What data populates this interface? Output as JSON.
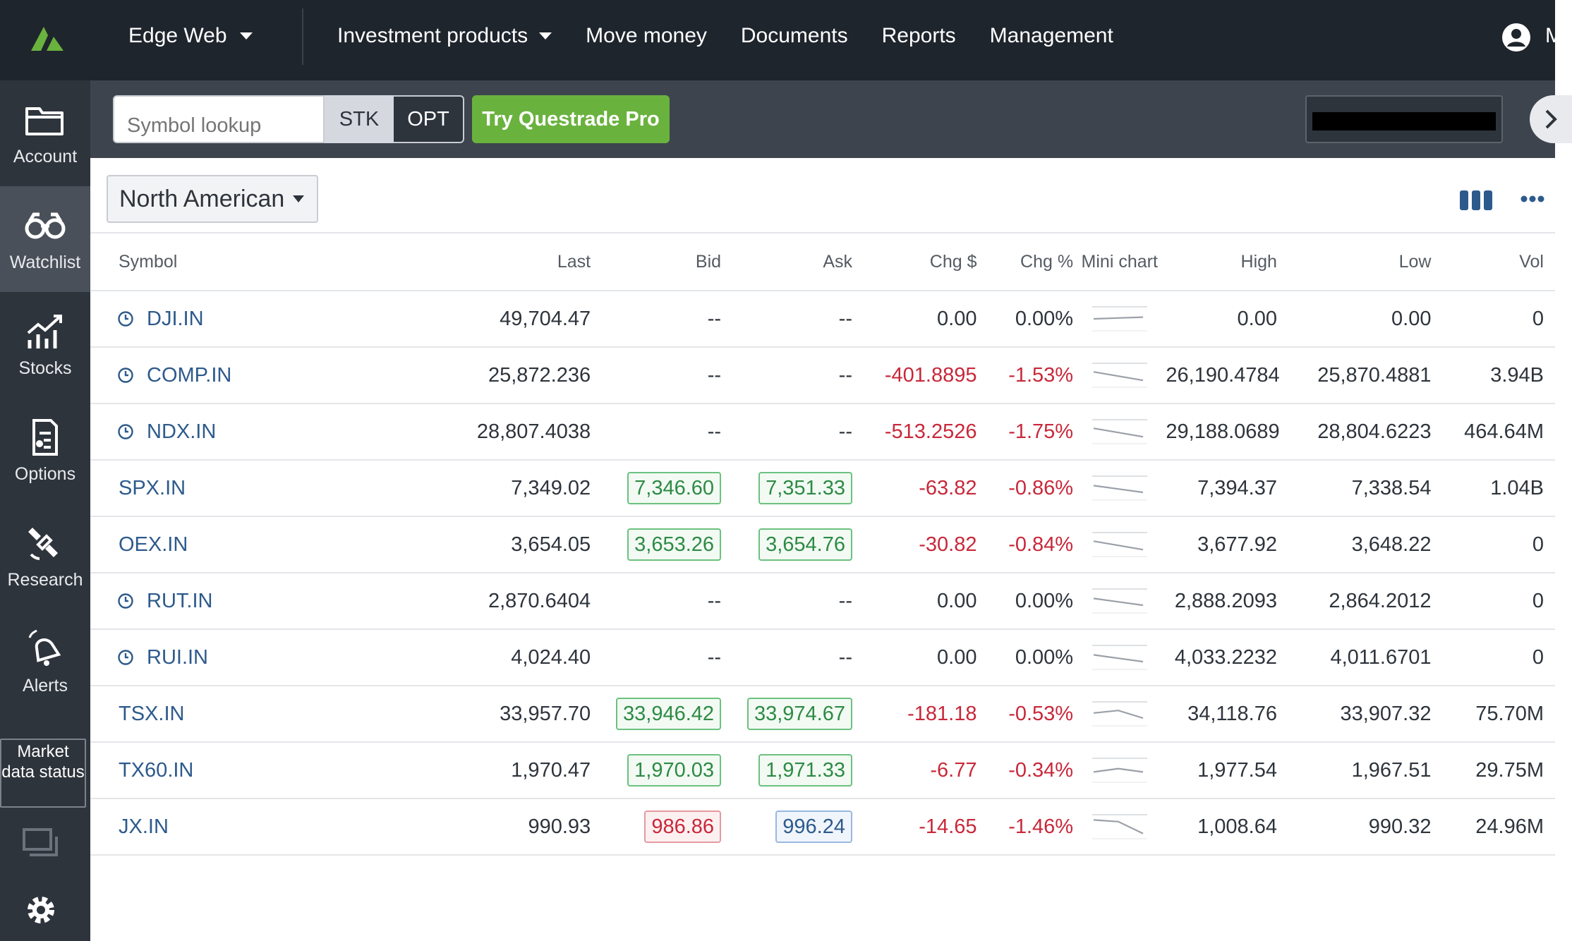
{
  "topbar": {
    "app_name": "Edge Web",
    "nav": [
      "Investment products",
      "Move money",
      "Documents",
      "Reports",
      "Management"
    ],
    "user_initial": "M"
  },
  "sidebar": {
    "items": [
      {
        "label": "Account",
        "icon": "folder-icon"
      },
      {
        "label": "Watchlist",
        "icon": "binoculars-icon",
        "active": true
      },
      {
        "label": "Stocks",
        "icon": "stocks-chart-icon"
      },
      {
        "label": "Options",
        "icon": "options-doc-icon"
      },
      {
        "label": "Research",
        "icon": "satellite-icon"
      },
      {
        "label": "Alerts",
        "icon": "bell-icon"
      }
    ],
    "market_status": "Market data status"
  },
  "toolbar": {
    "search_placeholder": "Symbol lookup",
    "stk": "STK",
    "opt": "OPT",
    "pro_button": "Try Questrade Pro"
  },
  "watchlist": {
    "region": "North American",
    "columns": [
      "Symbol",
      "Last",
      "Bid",
      "Ask",
      "Chg $",
      "Chg %",
      "Mini chart",
      "High",
      "Low",
      "Vol"
    ],
    "rows": [
      {
        "symbol": "DJI.IN",
        "clock": true,
        "last": "49,704.47",
        "bid": "--",
        "ask": "--",
        "chg": "0.00",
        "chgp": "0.00%",
        "neg": false,
        "spark": [
          0.5,
          0.45,
          0.4
        ],
        "high": "0.00",
        "low": "0.00",
        "vol": "0"
      },
      {
        "symbol": "COMP.IN",
        "clock": true,
        "last": "25,872.236",
        "bid": "--",
        "ask": "--",
        "chg": "-401.8895",
        "chgp": "-1.53%",
        "neg": true,
        "spark": [
          0.3,
          0.55,
          0.8
        ],
        "high": "26,190.4784",
        "low": "25,870.4881",
        "vol": "3.94B"
      },
      {
        "symbol": "NDX.IN",
        "clock": true,
        "last": "28,807.4038",
        "bid": "--",
        "ask": "--",
        "chg": "-513.2526",
        "chgp": "-1.75%",
        "neg": true,
        "spark": [
          0.3,
          0.55,
          0.8
        ],
        "high": "29,188.0689",
        "low": "28,804.6223",
        "vol": "464.64M"
      },
      {
        "symbol": "SPX.IN",
        "clock": false,
        "last": "7,349.02",
        "bid": "7,346.60",
        "ask": "7,351.33",
        "bidStyle": "green",
        "askStyle": "green",
        "chg": "-63.82",
        "chgp": "-0.86%",
        "neg": true,
        "spark": [
          0.35,
          0.55,
          0.75
        ],
        "high": "7,394.37",
        "low": "7,338.54",
        "vol": "1.04B"
      },
      {
        "symbol": "OEX.IN",
        "clock": false,
        "last": "3,654.05",
        "bid": "3,653.26",
        "ask": "3,654.76",
        "bidStyle": "green",
        "askStyle": "green",
        "chg": "-30.82",
        "chgp": "-0.84%",
        "neg": true,
        "spark": [
          0.3,
          0.55,
          0.8
        ],
        "high": "3,677.92",
        "low": "3,648.22",
        "vol": "0"
      },
      {
        "symbol": "RUT.IN",
        "clock": true,
        "last": "2,870.6404",
        "bid": "--",
        "ask": "--",
        "chg": "0.00",
        "chgp": "0.00%",
        "neg": false,
        "spark": [
          0.35,
          0.55,
          0.75
        ],
        "high": "2,888.2093",
        "low": "2,864.2012",
        "vol": "0"
      },
      {
        "symbol": "RUI.IN",
        "clock": true,
        "last": "4,024.40",
        "bid": "--",
        "ask": "--",
        "chg": "0.00",
        "chgp": "0.00%",
        "neg": false,
        "spark": [
          0.35,
          0.55,
          0.75
        ],
        "high": "4,033.2232",
        "low": "4,011.6701",
        "vol": "0"
      },
      {
        "symbol": "TSX.IN",
        "clock": false,
        "last": "33,957.70",
        "bid": "33,946.42",
        "ask": "33,974.67",
        "bidStyle": "green",
        "askStyle": "green",
        "chg": "-181.18",
        "chgp": "-0.53%",
        "neg": true,
        "spark": [
          0.45,
          0.3,
          0.75
        ],
        "high": "34,118.76",
        "low": "33,907.32",
        "vol": "75.70M"
      },
      {
        "symbol": "TX60.IN",
        "clock": false,
        "last": "1,970.47",
        "bid": "1,970.03",
        "ask": "1,971.33",
        "bidStyle": "green",
        "askStyle": "green",
        "chg": "-6.77",
        "chgp": "-0.34%",
        "neg": true,
        "spark": [
          0.6,
          0.4,
          0.6
        ],
        "high": "1,977.54",
        "low": "1,967.51",
        "vol": "29.75M"
      },
      {
        "symbol": "JX.IN",
        "clock": false,
        "last": "990.93",
        "bid": "986.86",
        "ask": "996.24",
        "bidStyle": "red",
        "askStyle": "blue",
        "chg": "-14.65",
        "chgp": "-1.46%",
        "neg": true,
        "spark": [
          0.1,
          0.2,
          0.9
        ],
        "high": "1,008.64",
        "low": "990.32",
        "vol": "24.96M"
      }
    ]
  },
  "colors": {
    "accent_green": "#6ab23e",
    "negative": "#c8283a",
    "link": "#2d5a8c",
    "topbar": "#1f252d",
    "sidebar": "#2e343c"
  }
}
